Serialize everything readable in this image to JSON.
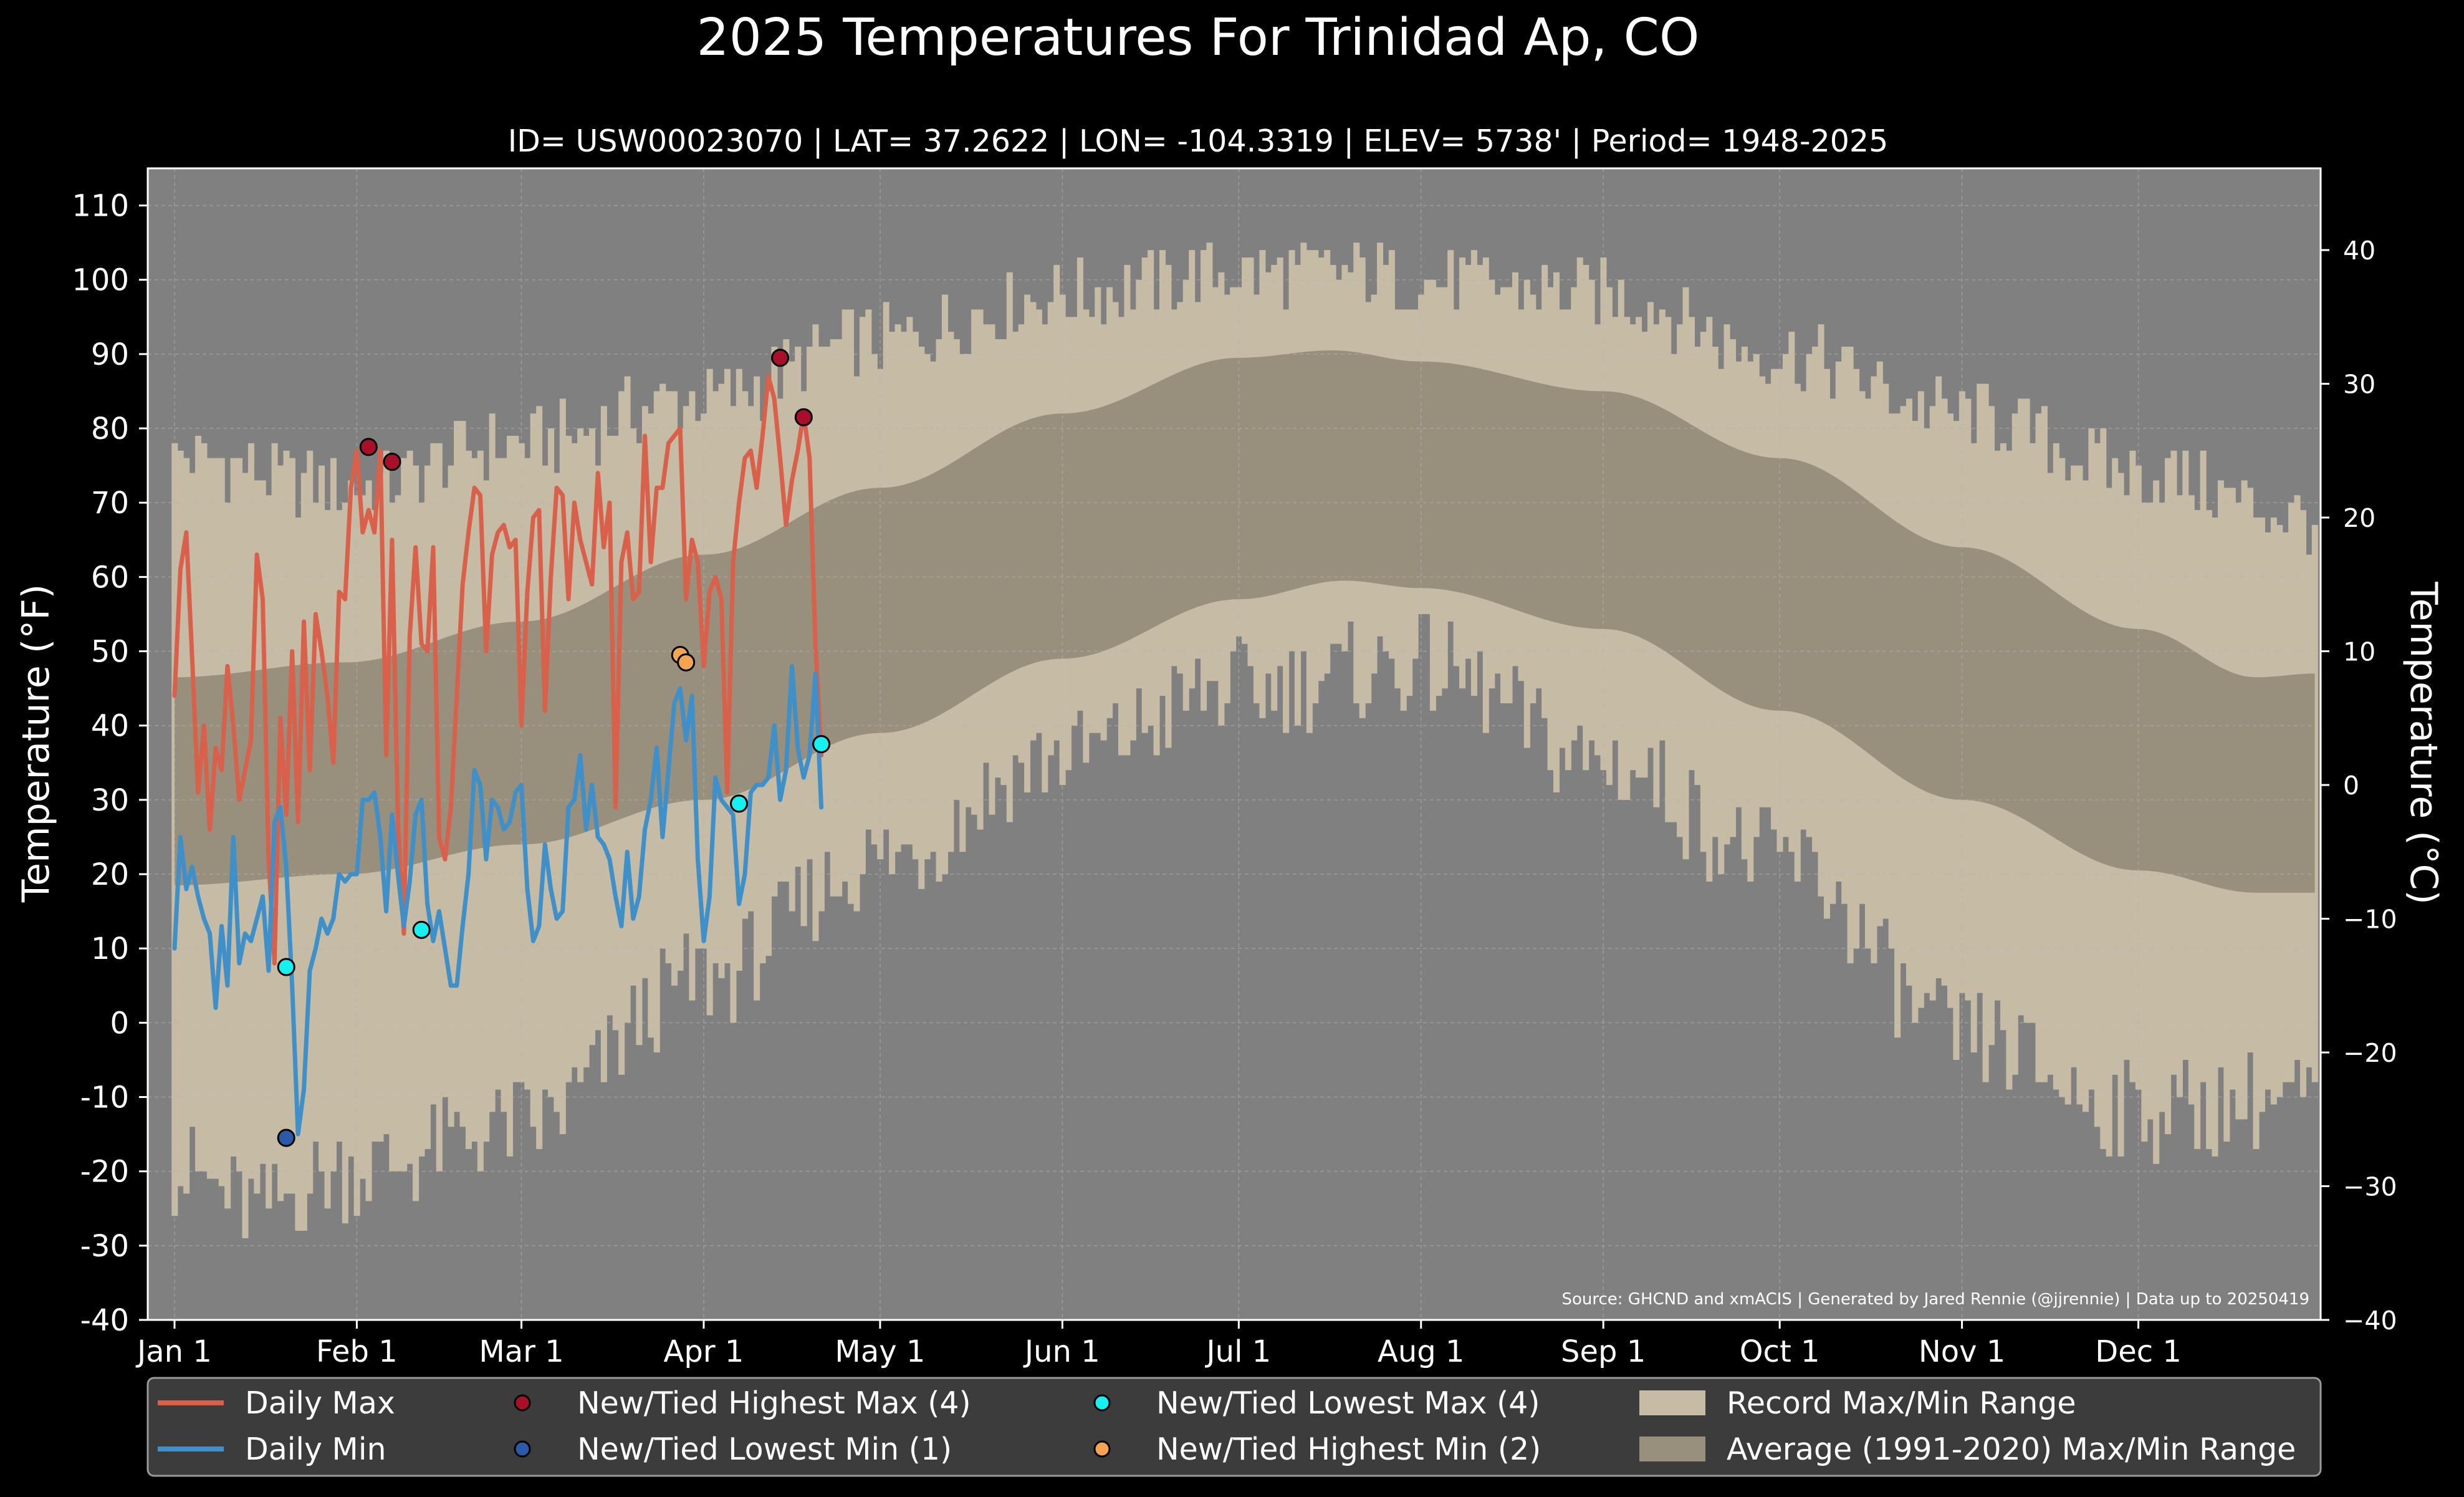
{
  "chart_data": {
    "type": "line",
    "title": "2025 Temperatures For Trinidad Ap, CO",
    "subtitle": "ID= USW00023070 | LAT= 37.2622 | LON= -104.3319 | ELEV= 5738' | Period= 1948-2025",
    "ylabel_left": "Temperature ( $^\\circ$F)",
    "ylabel_left_text": "Temperature (°F)",
    "ylabel_right_text": "Temperature (°C)",
    "source": "Source: GHCND and xmACIS | Generated by Jared Rennie (@jjrennie) | Data up to 20250419",
    "ylim": [
      -40,
      115
    ],
    "yticks_f": [
      "-40",
      "-30",
      "-20",
      "-10",
      "0",
      "10",
      "20",
      "30",
      "40",
      "50",
      "60",
      "70",
      "80",
      "90",
      "100",
      "110"
    ],
    "yticks_c": [
      "−40",
      "−30",
      "−20",
      "−10",
      "0",
      "10",
      "20",
      "30",
      "40"
    ],
    "xticks": [
      {
        "label": "Jan 1",
        "day": 1
      },
      {
        "label": "Feb 1",
        "day": 32
      },
      {
        "label": "Mar 1",
        "day": 60
      },
      {
        "label": "Apr 1",
        "day": 91
      },
      {
        "label": "May 1",
        "day": 121
      },
      {
        "label": "Jun 1",
        "day": 152
      },
      {
        "label": "Jul 1",
        "day": 182
      },
      {
        "label": "Aug 1",
        "day": 213
      },
      {
        "label": "Sep 1",
        "day": 244
      },
      {
        "label": "Oct 1",
        "day": 274
      },
      {
        "label": "Nov 1",
        "day": 305
      },
      {
        "label": "Dec 1",
        "day": 335
      }
    ],
    "grid": true,
    "legend_position": "bottom",
    "colors": {
      "background": "#000000",
      "plot_bg": "#808080",
      "record_band": "#c6bca5",
      "normal_band": "#998f7d",
      "daily_max": "#d9604a",
      "daily_min": "#3f8fc9",
      "new_high_max": "#a8102a",
      "new_low_min": "#2a5aa8",
      "new_low_max": "#17f0f0",
      "new_high_min": "#f5a550",
      "legend_bg": "#3c3c3c"
    },
    "record_max_anchors": [
      [
        1,
        76
      ],
      [
        30,
        72
      ],
      [
        60,
        78
      ],
      [
        91,
        84
      ],
      [
        121,
        92
      ],
      [
        152,
        98
      ],
      [
        182,
        101
      ],
      [
        200,
        101
      ],
      [
        213,
        100
      ],
      [
        244,
        98
      ],
      [
        274,
        90
      ],
      [
        305,
        82
      ],
      [
        335,
        74
      ],
      [
        365,
        68
      ]
    ],
    "record_min_anchors": [
      [
        1,
        -20
      ],
      [
        15,
        -25
      ],
      [
        30,
        -20
      ],
      [
        60,
        -14
      ],
      [
        91,
        6
      ],
      [
        121,
        22
      ],
      [
        152,
        36
      ],
      [
        182,
        45
      ],
      [
        213,
        48
      ],
      [
        244,
        35
      ],
      [
        274,
        22
      ],
      [
        305,
        -2
      ],
      [
        335,
        -12
      ],
      [
        365,
        -10
      ]
    ],
    "normal_max_anchors": [
      [
        1,
        46.5
      ],
      [
        30,
        48.5
      ],
      [
        60,
        54
      ],
      [
        91,
        63
      ],
      [
        121,
        72
      ],
      [
        152,
        82
      ],
      [
        182,
        89.5
      ],
      [
        198,
        90.5
      ],
      [
        213,
        89
      ],
      [
        244,
        85
      ],
      [
        274,
        76
      ],
      [
        305,
        64
      ],
      [
        335,
        53
      ],
      [
        355,
        46.5
      ],
      [
        365,
        47
      ]
    ],
    "normal_min_anchors": [
      [
        1,
        18.5
      ],
      [
        30,
        20
      ],
      [
        60,
        24
      ],
      [
        91,
        30
      ],
      [
        121,
        39
      ],
      [
        152,
        49
      ],
      [
        182,
        57
      ],
      [
        200,
        59.5
      ],
      [
        213,
        58.5
      ],
      [
        244,
        53
      ],
      [
        274,
        42
      ],
      [
        305,
        30
      ],
      [
        335,
        20.5
      ],
      [
        355,
        17.5
      ],
      [
        365,
        17.5
      ]
    ],
    "series": [
      {
        "name": "Daily Max",
        "start_day": 1,
        "values": [
          44,
          61,
          66,
          49,
          31,
          40,
          26,
          37,
          34,
          48,
          40,
          30,
          34,
          38,
          63,
          57,
          22,
          8,
          41,
          28,
          50,
          27,
          54,
          34,
          55,
          50,
          44,
          35,
          58,
          57,
          72,
          77,
          66,
          69,
          66,
          77,
          36,
          65,
          27,
          12,
          52,
          64,
          51,
          50,
          64,
          25,
          22,
          29,
          44,
          59,
          66,
          72,
          71,
          50,
          63,
          66,
          67,
          64,
          65,
          40,
          58,
          68,
          69,
          42,
          60,
          72,
          71,
          57,
          70,
          65,
          62,
          59,
          74,
          64,
          70,
          29,
          62,
          66,
          57,
          58,
          79,
          62,
          72,
          72,
          78,
          79,
          80,
          57,
          65,
          62,
          48,
          58,
          60,
          57,
          31,
          62,
          70,
          76,
          77,
          72,
          79,
          87,
          84,
          76,
          67,
          73,
          77,
          82,
          76,
          51,
          36
        ]
      },
      {
        "name": "Daily Min",
        "start_day": 1,
        "values": [
          10,
          25,
          18,
          21,
          17,
          14,
          12,
          2,
          13,
          5,
          25,
          8,
          12,
          11,
          14,
          17,
          7,
          27,
          29,
          21,
          5,
          -15,
          -9,
          7,
          10,
          14,
          12,
          14,
          20,
          19,
          20,
          20,
          30,
          30,
          31,
          25,
          15,
          28,
          20,
          13,
          19,
          28,
          30,
          16,
          11,
          15,
          10,
          5,
          5,
          13,
          20,
          34,
          32,
          22,
          30,
          29,
          26,
          27,
          31,
          32,
          18,
          11,
          13,
          24,
          18,
          14,
          15,
          29,
          30,
          36,
          26,
          32,
          25,
          24,
          22,
          17,
          13,
          23,
          14,
          17,
          26,
          30,
          37,
          25,
          34,
          43,
          45,
          38,
          44,
          22,
          11,
          17,
          33,
          30,
          29,
          28,
          16,
          20,
          31,
          32,
          32,
          33,
          40,
          30,
          34,
          48,
          37,
          33,
          36,
          47,
          29
        ]
      }
    ],
    "records": [
      {
        "label": "New/Tied Highest Max (4)",
        "points": [
          [
            34,
            77.5
          ],
          [
            38,
            75.5
          ],
          [
            104,
            89.5
          ],
          [
            108,
            81.5
          ]
        ]
      },
      {
        "label": "New/Tied Lowest Min (1)",
        "points": [
          [
            20,
            -15.5
          ]
        ]
      },
      {
        "label": "New/Tied Lowest Max (4)",
        "points": [
          [
            20,
            7.5
          ],
          [
            43,
            12.5
          ],
          [
            97,
            29.5
          ],
          [
            111,
            37.5
          ]
        ]
      },
      {
        "label": "New/Tied Highest Min (2)",
        "points": [
          [
            87,
            49.5
          ],
          [
            88,
            48.5
          ]
        ]
      }
    ],
    "legend": [
      {
        "label": "Daily Max",
        "kind": "line",
        "color_key": "daily_max"
      },
      {
        "label": "Daily Min",
        "kind": "line",
        "color_key": "daily_min"
      },
      {
        "label": "New/Tied Highest Max (4)",
        "kind": "dot",
        "color_key": "new_high_max"
      },
      {
        "label": "New/Tied Lowest Min (1)",
        "kind": "dot",
        "color_key": "new_low_min"
      },
      {
        "label": "New/Tied Lowest Max (4)",
        "kind": "dot",
        "color_key": "new_low_max"
      },
      {
        "label": "New/Tied Highest Min (2)",
        "kind": "dot",
        "color_key": "new_high_min"
      },
      {
        "label": "Record Max/Min Range",
        "kind": "patch",
        "color_key": "record_band"
      },
      {
        "label": "Average (1991-2020) Max/Min Range",
        "kind": "patch",
        "color_key": "normal_band"
      }
    ]
  }
}
